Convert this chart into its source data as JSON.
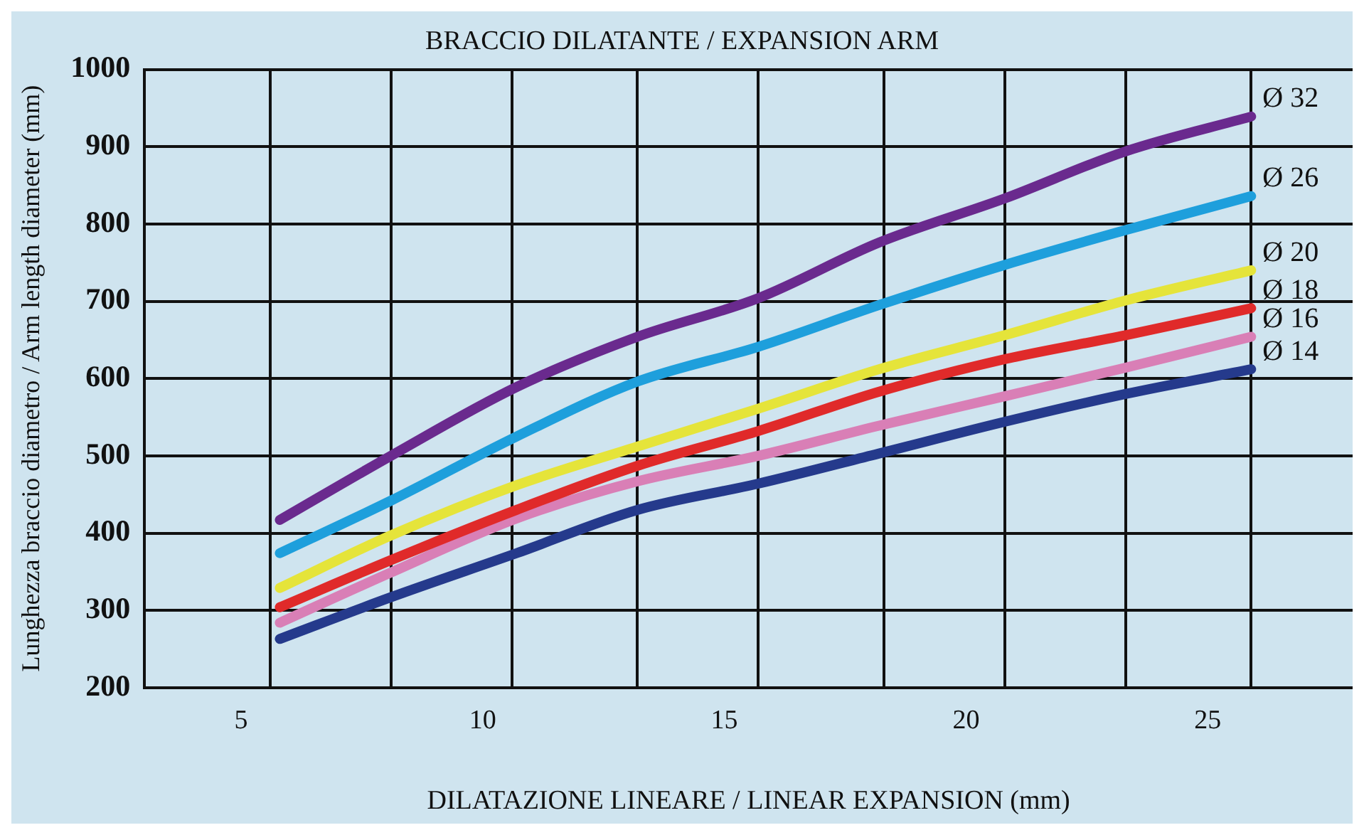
{
  "chart_data": {
    "type": "line",
    "title": "BRACCIO DILATANTE / EXPANSION ARM",
    "xlabel": "DILATAZIONE LINEARE / LINEAR EXPANSION (mm)",
    "ylabel": "Lunghezza braccio diametro / Arm length diameter (mm)",
    "x": [
      5.8,
      8.1,
      10.7,
      13.2,
      15.7,
      18.2,
      20.8,
      23.3,
      25.9
    ],
    "series": [
      {
        "name": "Ø 32",
        "color": "#6a2a8e",
        "values": [
          417,
          500,
          589,
          654,
          704,
          776,
          833,
          894,
          939
        ]
      },
      {
        "name": "Ø 26",
        "color": "#1e9fdc",
        "values": [
          374,
          442,
          525,
          596,
          641,
          695,
          747,
          792,
          836
        ]
      },
      {
        "name": "Ø 20",
        "color": "#e5e43a",
        "values": [
          329,
          397,
          462,
          512,
          561,
          612,
          656,
          701,
          740
        ]
      },
      {
        "name": "Ø 18",
        "color": "#e02a2a",
        "values": [
          304,
          365,
          430,
          487,
          532,
          583,
          625,
          656,
          691
        ]
      },
      {
        "name": "Ø 16",
        "color": "#d97fb6",
        "values": [
          284,
          349,
          419,
          467,
          500,
          539,
          577,
          614,
          654
        ]
      },
      {
        "name": "Ø 14",
        "color": "#253a8c",
        "values": [
          263,
          317,
          374,
          430,
          464,
          503,
          544,
          580,
          612
        ]
      }
    ],
    "xlim": [
      3,
      28
    ],
    "xticks": [
      5,
      {
        "value": 5.6,
        "label": null
      },
      {
        "value": 8.1,
        "label": null
      },
      10,
      {
        "value": 10.6,
        "label": null
      },
      {
        "value": 13.2,
        "label": null
      },
      15,
      {
        "value": 15.7,
        "label": null
      },
      {
        "value": 18.3,
        "label": null
      },
      20,
      {
        "value": 20.8,
        "label": null
      },
      {
        "value": 23.3,
        "label": null
      },
      25,
      {
        "value": 25.9,
        "label": null
      }
    ],
    "ylim": [
      200,
      1000
    ],
    "yticks": [
      200,
      300,
      400,
      500,
      600,
      700,
      800,
      900,
      1000
    ],
    "grid": true,
    "legend": false,
    "marker": "none",
    "line_style": "solid"
  }
}
